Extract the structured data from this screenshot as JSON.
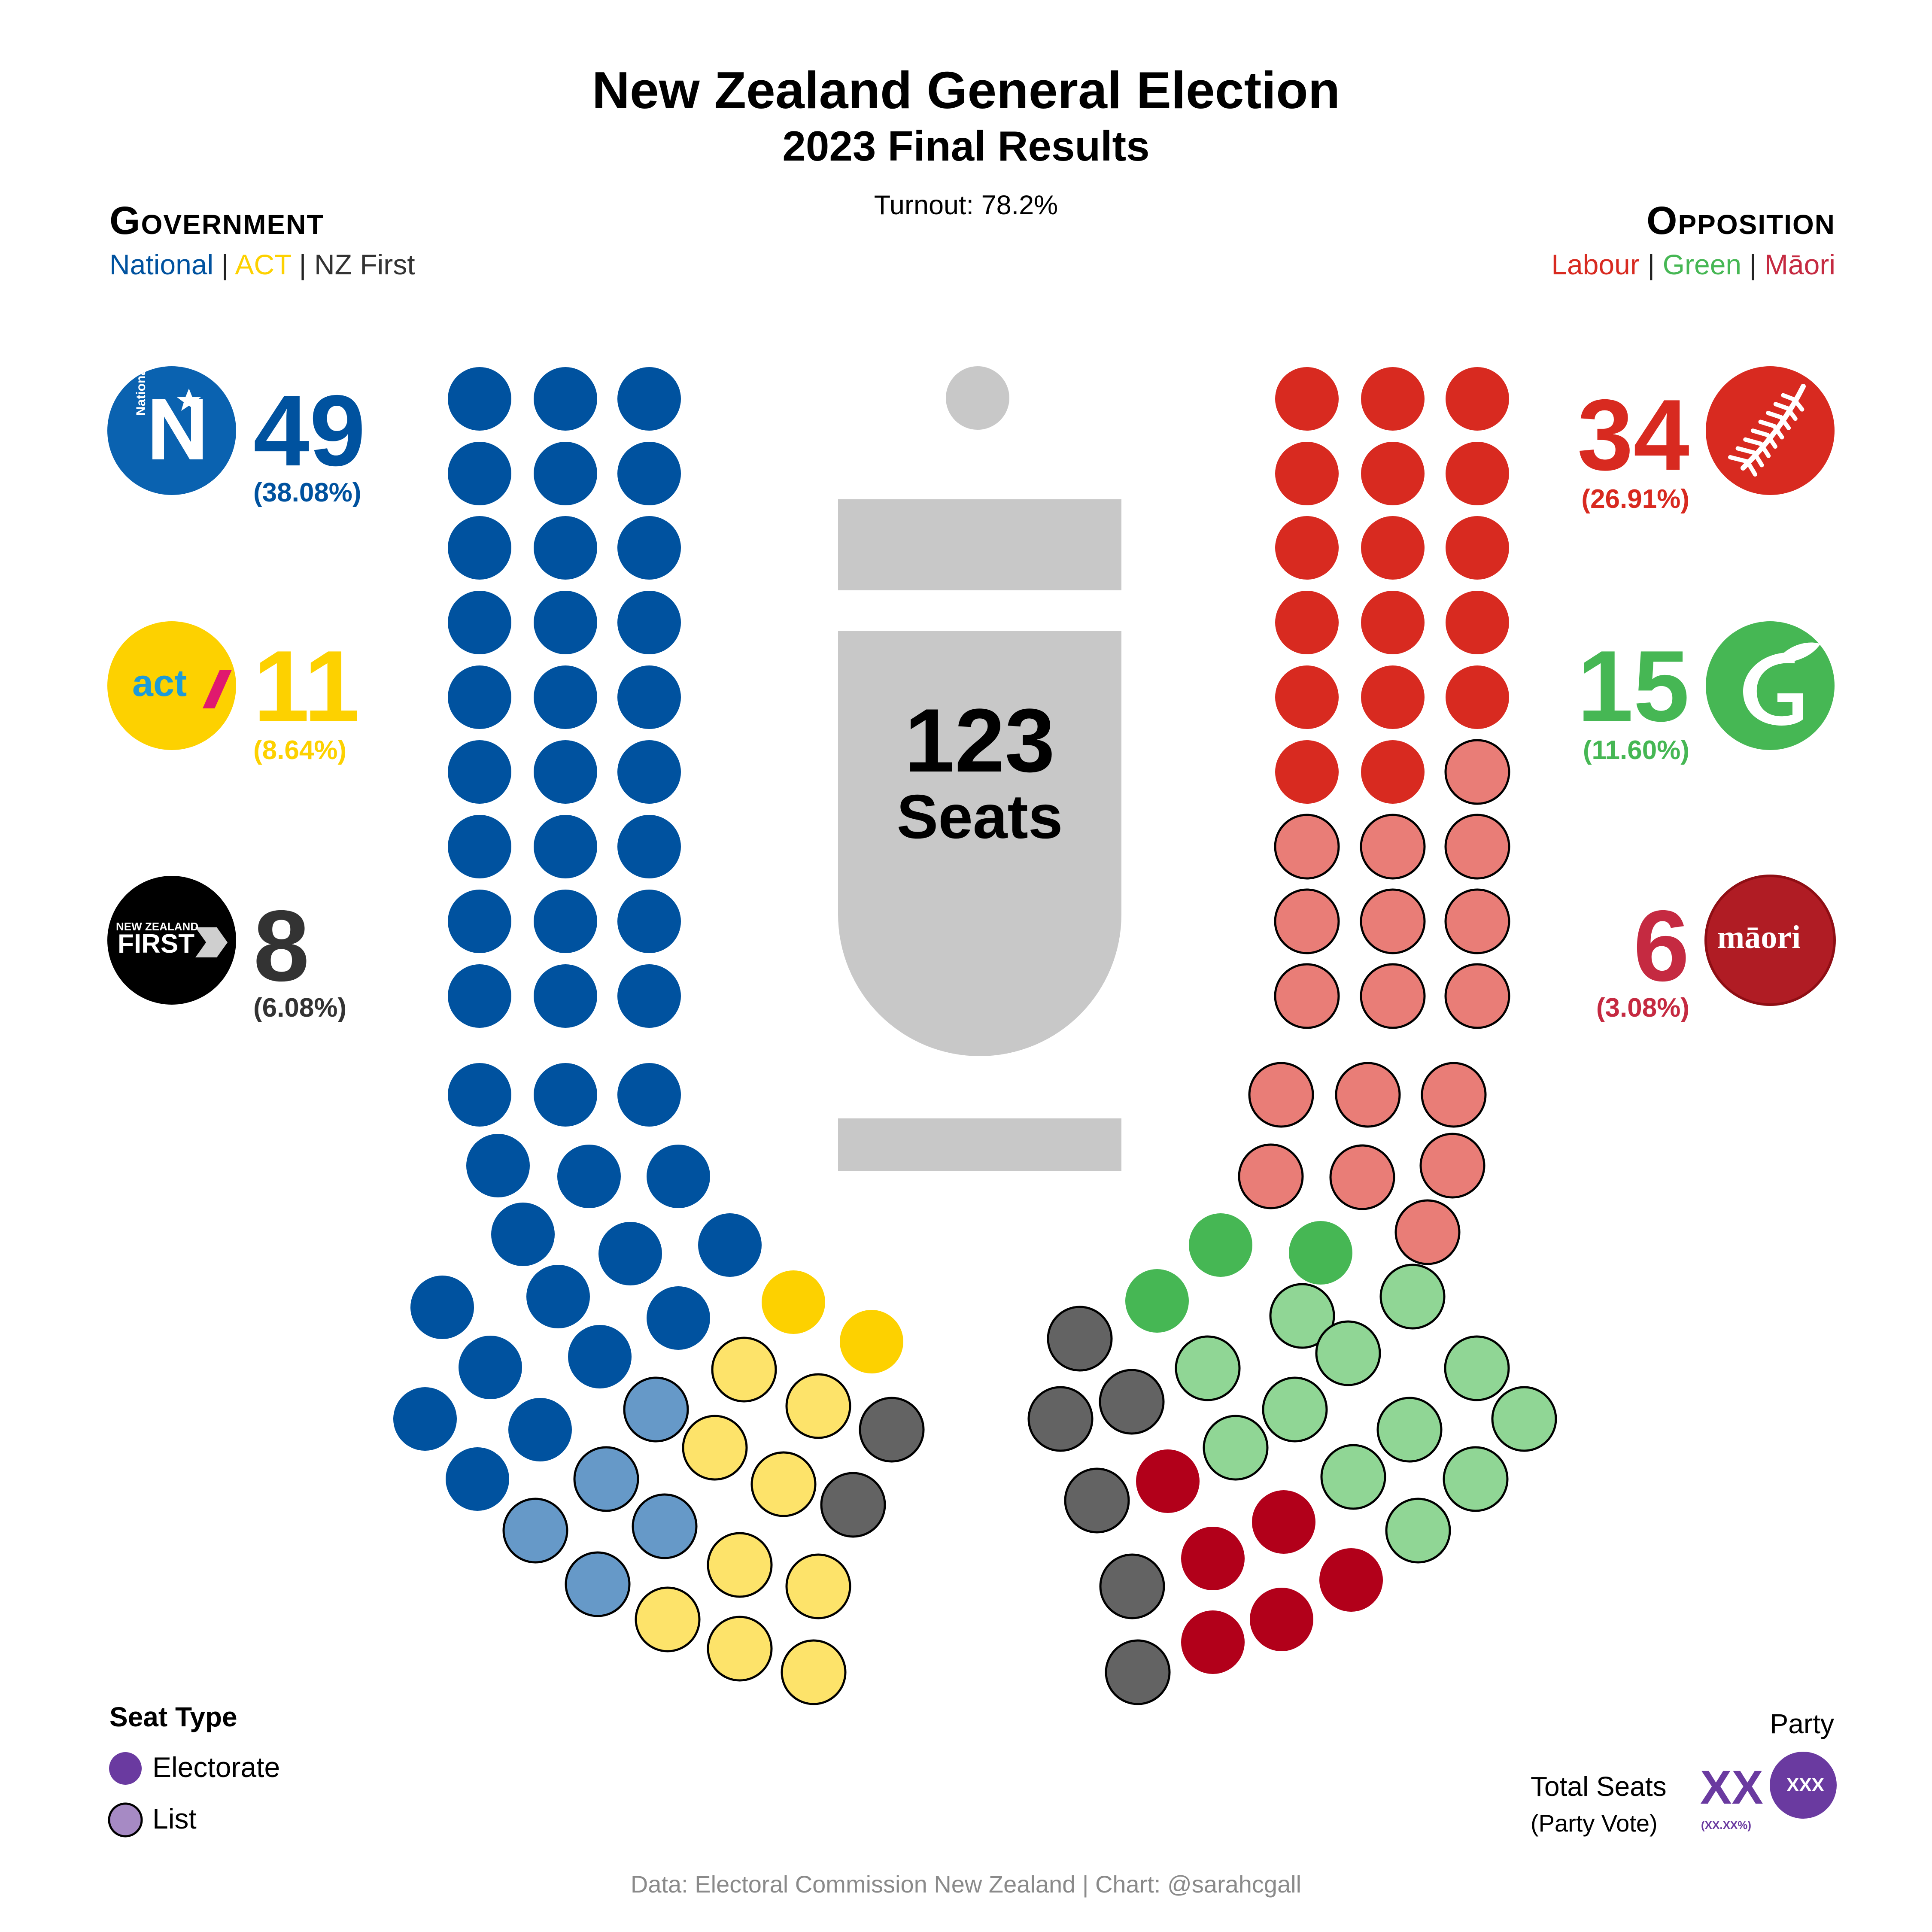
{
  "header": {
    "title": "New Zealand General Election",
    "subtitle": "2023 Final Results",
    "turnout": "Turnout: 78.2%"
  },
  "government": {
    "heading": "Government",
    "parties": [
      "National",
      "ACT",
      "NZ First"
    ],
    "separator": "|"
  },
  "opposition": {
    "heading": "Opposition",
    "parties": [
      "Labour",
      "Green",
      "Māori"
    ],
    "separator": "|"
  },
  "center": {
    "total": "123",
    "label": "Seats"
  },
  "logos": {
    "national": "National",
    "act": "act",
    "nzfirst_top": "NEW ZEALAND",
    "nzfirst_main": "FIRST",
    "maori": "māori"
  },
  "legend": {
    "title": "Seat Type",
    "electorate": "Electorate",
    "list": "List",
    "party": "Party",
    "total_seats": "Total Seats",
    "party_vote": "(Party Vote)",
    "xx": "XX",
    "pct": "(XX.XX%)",
    "xxx": "XXX"
  },
  "footer": "Data: Electoral Commission New Zealand  |  Chart: @sarahcgall",
  "colors": {
    "national": "#00529f",
    "national_list": "#6699c8",
    "act": "#fdd100",
    "act_list": "#fde36a",
    "nzfirst": "#2d2d2d",
    "nzfirst_list": "#636363",
    "labour": "#d82a20",
    "labour_list": "#e97d77",
    "green": "#46b754",
    "green_list": "#90d695",
    "maori": "#b2001a",
    "maori_list": "#b2001a",
    "speaker": "#c8c8c8",
    "legend_purple": "#6a3aa0",
    "legend_purple_light": "#a68ac4"
  },
  "chart_data": {
    "type": "parliament",
    "total_seats": 123,
    "series": [
      {
        "name": "National",
        "seats": 49,
        "display": "49",
        "vote_share": 38.08,
        "vote_label": "(38.08%)",
        "electorate": 43,
        "list": 6
      },
      {
        "name": "ACT",
        "seats": 11,
        "display": "11",
        "vote_share": 8.64,
        "vote_label": "(8.64%)",
        "electorate": 2,
        "list": 9
      },
      {
        "name": "NZ First",
        "seats": 8,
        "display": "8",
        "vote_share": 6.08,
        "vote_label": "(6.08%)",
        "electorate": 0,
        "list": 8
      },
      {
        "name": "Labour",
        "seats": 34,
        "display": "34",
        "vote_share": 26.91,
        "vote_label": "(26.91%)",
        "electorate": 17,
        "list": 17
      },
      {
        "name": "Green",
        "seats": 15,
        "display": "15",
        "vote_share": 11.6,
        "vote_label": "(11.60%)",
        "electorate": 3,
        "list": 12
      },
      {
        "name": "Māori",
        "seats": 6,
        "display": "6",
        "vote_share": 3.08,
        "vote_label": "(3.08%)",
        "electorate": 6,
        "list": 0
      }
    ]
  }
}
